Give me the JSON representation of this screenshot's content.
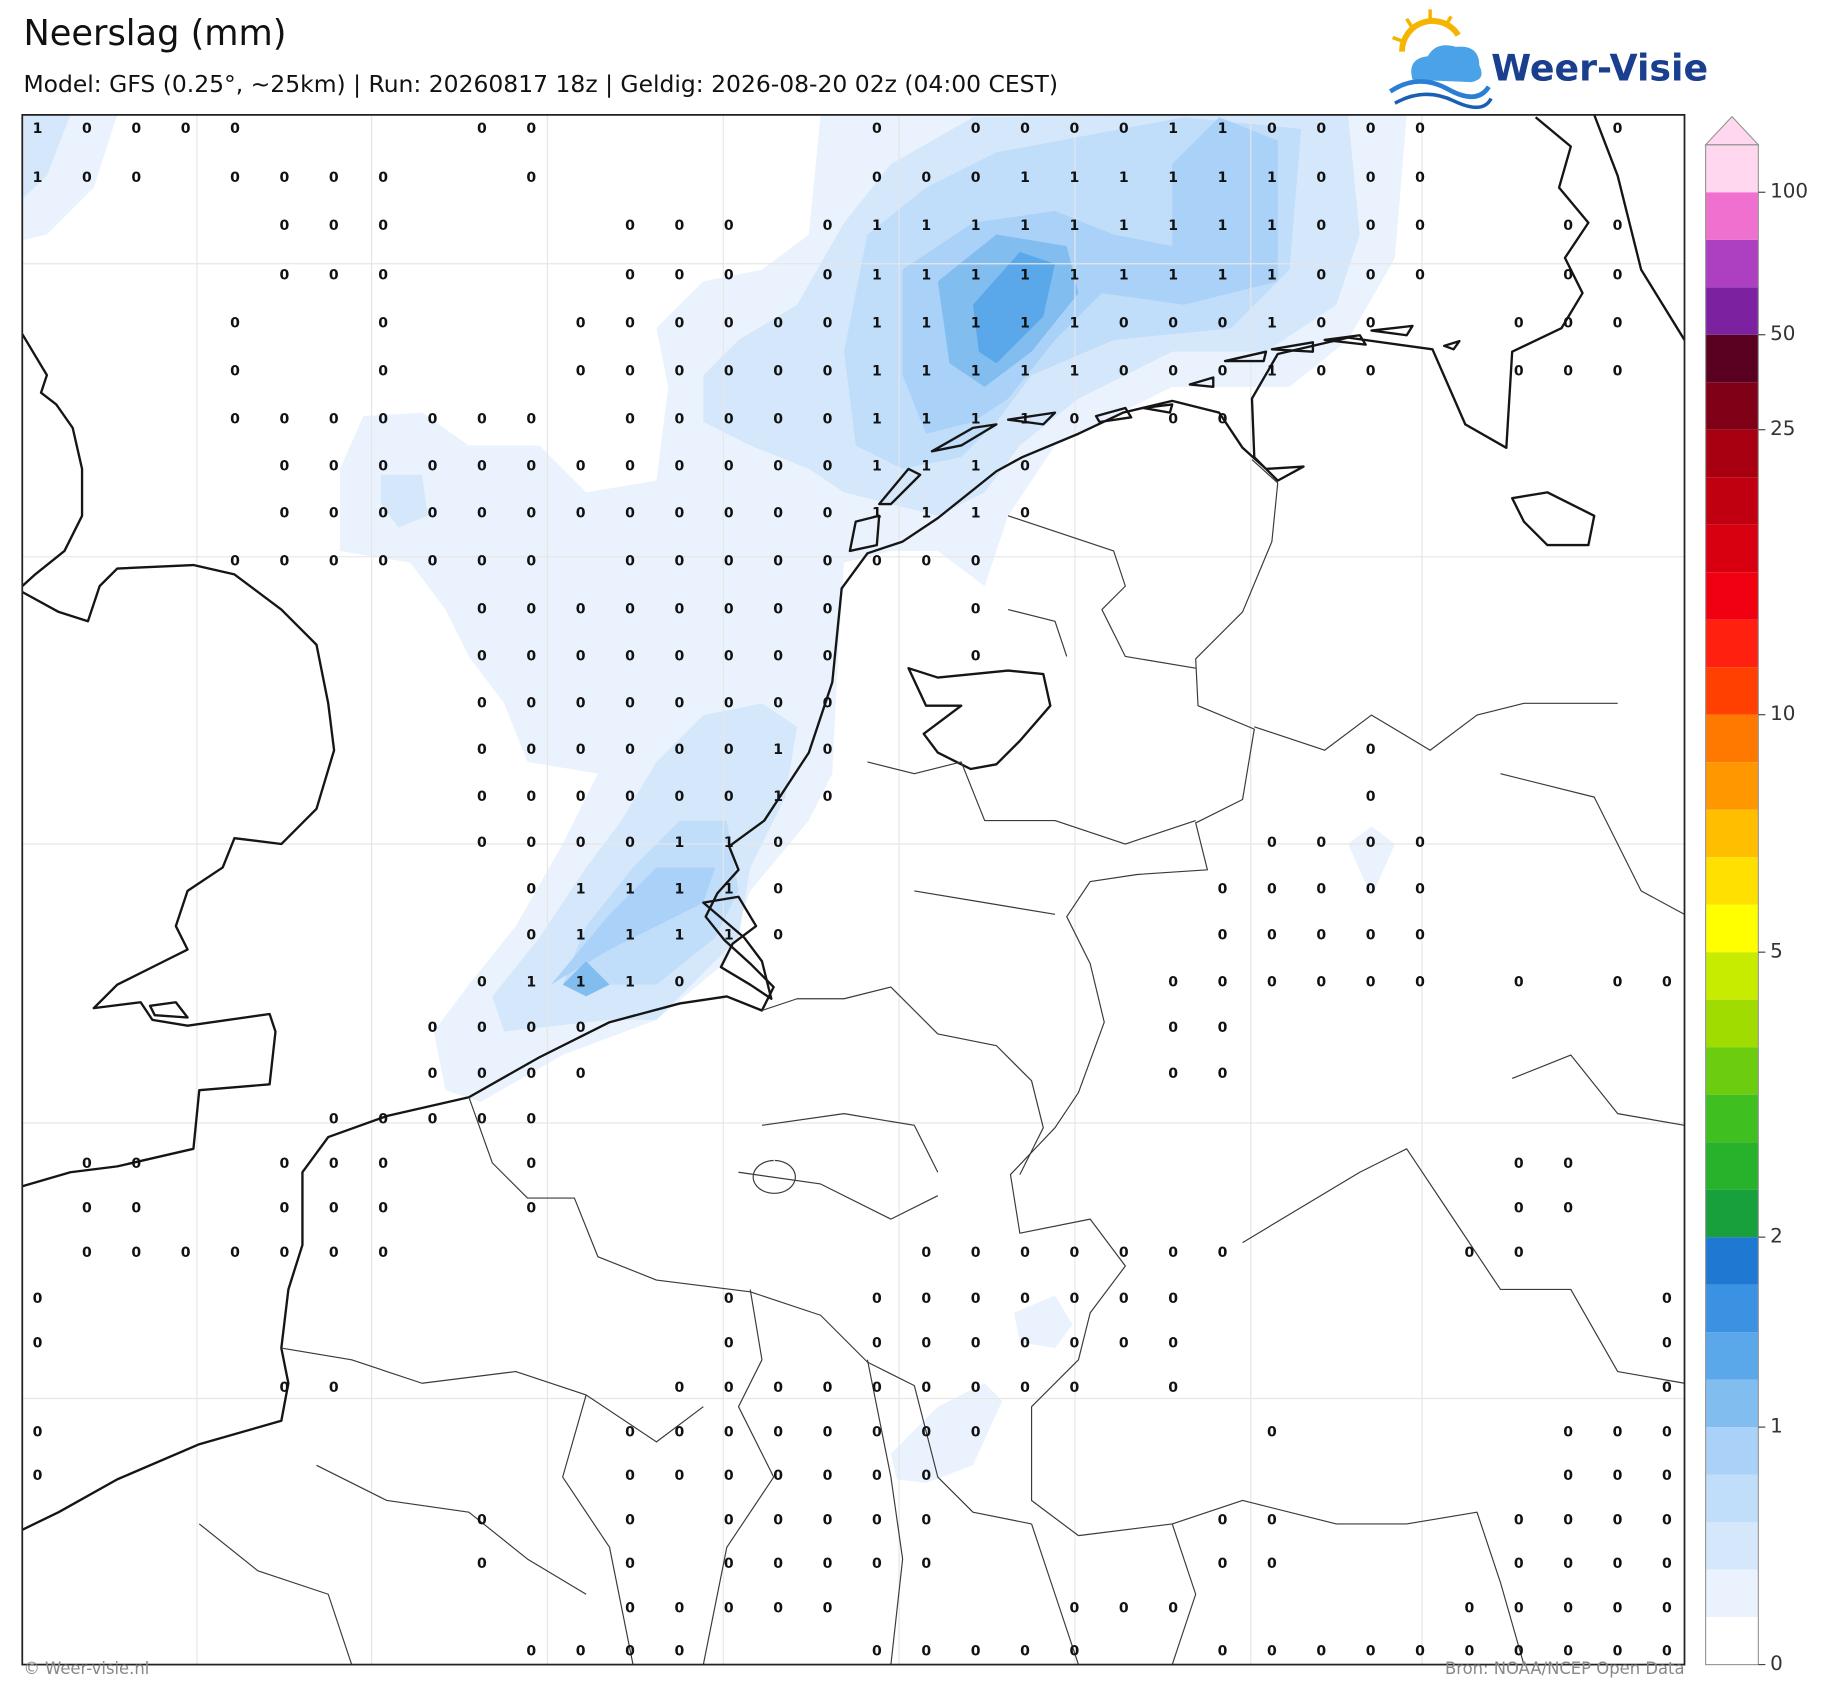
{
  "header": {
    "title": "Neerslag (mm)",
    "subtitle": "Model: GFS (0.25°, ~25km)  |  Run: 20260817 18z  |  Geldig: 2026-08-20 02z (04:00 CEST)"
  },
  "logo": "Weer-Visie",
  "grid": {
    "rows": [
      [
        1,
        0,
        0,
        0,
        0,
        null,
        null,
        null,
        null,
        0,
        0,
        null,
        null,
        null,
        null,
        null,
        null,
        0,
        null,
        0,
        0,
        0,
        0,
        1,
        1,
        0,
        0,
        0,
        0,
        null,
        null,
        null,
        0,
        null
      ],
      [
        1,
        0,
        0,
        null,
        0,
        0,
        0,
        0,
        null,
        null,
        0,
        null,
        null,
        null,
        null,
        null,
        null,
        0,
        0,
        0,
        1,
        1,
        1,
        1,
        1,
        1,
        0,
        0,
        0,
        null,
        null,
        null,
        null,
        null
      ],
      [
        null,
        null,
        null,
        null,
        null,
        0,
        0,
        0,
        null,
        null,
        null,
        null,
        0,
        0,
        0,
        null,
        0,
        1,
        1,
        1,
        1,
        1,
        1,
        1,
        1,
        1,
        0,
        0,
        0,
        null,
        null,
        0,
        0,
        null
      ],
      [
        null,
        null,
        null,
        null,
        null,
        0,
        0,
        0,
        null,
        null,
        null,
        null,
        0,
        0,
        0,
        null,
        0,
        1,
        1,
        1,
        1,
        1,
        1,
        1,
        1,
        1,
        0,
        0,
        0,
        null,
        null,
        0,
        0,
        null
      ],
      [
        null,
        null,
        null,
        null,
        0,
        null,
        null,
        0,
        null,
        null,
        null,
        0,
        0,
        0,
        0,
        0,
        0,
        1,
        1,
        1,
        1,
        1,
        0,
        0,
        0,
        1,
        0,
        0,
        null,
        null,
        0,
        0,
        0,
        null
      ],
      [
        null,
        null,
        null,
        null,
        0,
        null,
        null,
        0,
        null,
        null,
        null,
        0,
        0,
        0,
        0,
        0,
        0,
        1,
        1,
        1,
        1,
        1,
        0,
        0,
        0,
        1,
        0,
        0,
        null,
        null,
        0,
        0,
        0,
        null
      ],
      [
        null,
        null,
        null,
        null,
        0,
        0,
        0,
        0,
        0,
        0,
        0,
        null,
        0,
        0,
        0,
        0,
        0,
        1,
        1,
        1,
        1,
        0,
        null,
        0,
        0,
        null,
        null,
        null,
        null,
        null,
        null,
        null,
        null,
        null
      ],
      [
        null,
        null,
        null,
        null,
        null,
        0,
        0,
        0,
        0,
        0,
        0,
        0,
        0,
        0,
        0,
        0,
        0,
        1,
        1,
        1,
        0,
        null,
        null,
        null,
        null,
        null,
        null,
        null,
        null,
        null,
        null,
        null,
        null,
        null
      ],
      [
        null,
        null,
        null,
        null,
        null,
        0,
        0,
        0,
        0,
        0,
        0,
        0,
        0,
        0,
        0,
        0,
        0,
        1,
        1,
        1,
        0,
        null,
        null,
        null,
        null,
        null,
        null,
        null,
        null,
        null,
        null,
        null,
        null,
        null
      ],
      [
        null,
        null,
        null,
        null,
        0,
        0,
        0,
        0,
        0,
        0,
        0,
        null,
        0,
        0,
        0,
        0,
        0,
        0,
        0,
        0,
        null,
        null,
        null,
        null,
        null,
        null,
        null,
        null,
        null,
        null,
        null,
        null,
        null,
        null
      ],
      [
        null,
        null,
        null,
        null,
        null,
        null,
        null,
        null,
        null,
        0,
        0,
        0,
        0,
        0,
        0,
        0,
        0,
        null,
        null,
        0,
        null,
        null,
        null,
        null,
        null,
        null,
        null,
        null,
        null,
        null,
        null,
        null,
        null,
        null
      ],
      [
        null,
        null,
        null,
        null,
        null,
        null,
        null,
        null,
        null,
        0,
        0,
        0,
        0,
        0,
        0,
        0,
        0,
        null,
        null,
        0,
        null,
        null,
        null,
        null,
        null,
        null,
        null,
        null,
        null,
        null,
        null,
        null,
        null,
        null
      ],
      [
        null,
        null,
        null,
        null,
        null,
        null,
        null,
        null,
        null,
        0,
        0,
        0,
        0,
        0,
        0,
        0,
        0,
        null,
        null,
        null,
        null,
        null,
        null,
        null,
        null,
        null,
        null,
        null,
        null,
        null,
        null,
        null,
        null,
        null
      ],
      [
        null,
        null,
        null,
        null,
        null,
        null,
        null,
        null,
        null,
        0,
        0,
        0,
        0,
        0,
        0,
        1,
        0,
        null,
        null,
        null,
        null,
        null,
        null,
        null,
        null,
        null,
        null,
        0,
        null,
        null,
        null,
        null,
        null,
        null
      ],
      [
        null,
        null,
        null,
        null,
        null,
        null,
        null,
        null,
        null,
        0,
        0,
        0,
        0,
        0,
        0,
        1,
        0,
        null,
        null,
        null,
        null,
        null,
        null,
        null,
        null,
        null,
        null,
        0,
        null,
        null,
        null,
        null,
        null,
        null
      ],
      [
        null,
        null,
        null,
        null,
        null,
        null,
        null,
        null,
        null,
        0,
        0,
        0,
        0,
        1,
        1,
        0,
        null,
        null,
        null,
        null,
        null,
        null,
        null,
        null,
        null,
        0,
        0,
        0,
        0,
        null,
        null,
        null,
        null,
        null
      ],
      [
        null,
        null,
        null,
        null,
        null,
        null,
        null,
        null,
        null,
        null,
        0,
        1,
        1,
        1,
        1,
        0,
        null,
        null,
        null,
        null,
        null,
        null,
        null,
        null,
        0,
        0,
        0,
        0,
        0,
        null,
        null,
        null,
        null,
        null
      ],
      [
        null,
        null,
        null,
        null,
        null,
        null,
        null,
        null,
        null,
        null,
        0,
        1,
        1,
        1,
        1,
        0,
        null,
        null,
        null,
        null,
        null,
        null,
        null,
        null,
        0,
        0,
        0,
        0,
        0,
        null,
        null,
        null,
        null,
        null
      ],
      [
        null,
        null,
        null,
        null,
        null,
        null,
        null,
        null,
        null,
        0,
        1,
        1,
        1,
        0,
        null,
        null,
        null,
        null,
        null,
        null,
        null,
        null,
        null,
        0,
        0,
        0,
        0,
        0,
        0,
        null,
        0,
        null,
        0,
        0
      ],
      [
        null,
        null,
        null,
        null,
        null,
        null,
        null,
        null,
        0,
        0,
        0,
        0,
        null,
        null,
        null,
        null,
        null,
        null,
        null,
        null,
        null,
        null,
        null,
        0,
        0,
        null,
        null,
        null,
        null,
        null,
        null,
        null,
        null,
        null
      ],
      [
        null,
        null,
        null,
        null,
        null,
        null,
        null,
        null,
        0,
        0,
        0,
        0,
        null,
        null,
        null,
        null,
        null,
        null,
        null,
        null,
        null,
        null,
        null,
        0,
        0,
        null,
        null,
        null,
        null,
        null,
        null,
        null,
        null,
        null
      ],
      [
        null,
        null,
        null,
        null,
        null,
        null,
        0,
        0,
        0,
        0,
        0,
        null,
        null,
        null,
        null,
        null,
        null,
        null,
        null,
        null,
        null,
        null,
        null,
        null,
        null,
        null,
        null,
        null,
        null,
        null,
        null,
        null,
        null,
        null
      ],
      [
        null,
        0,
        0,
        null,
        null,
        0,
        0,
        0,
        null,
        null,
        0,
        null,
        null,
        null,
        null,
        null,
        null,
        null,
        null,
        null,
        null,
        null,
        null,
        null,
        null,
        null,
        null,
        null,
        null,
        null,
        0,
        0,
        null,
        null
      ],
      [
        null,
        0,
        0,
        null,
        null,
        0,
        0,
        0,
        null,
        null,
        0,
        null,
        null,
        null,
        null,
        null,
        null,
        null,
        null,
        null,
        null,
        null,
        null,
        null,
        null,
        null,
        null,
        null,
        null,
        null,
        0,
        0,
        null,
        null
      ],
      [
        null,
        0,
        0,
        0,
        0,
        0,
        0,
        0,
        null,
        null,
        null,
        null,
        null,
        null,
        null,
        null,
        null,
        null,
        0,
        0,
        0,
        0,
        0,
        0,
        0,
        null,
        null,
        null,
        null,
        0,
        0,
        null,
        null,
        null
      ],
      [
        0,
        null,
        null,
        null,
        null,
        null,
        null,
        null,
        null,
        null,
        null,
        null,
        null,
        null,
        0,
        null,
        null,
        0,
        0,
        0,
        0,
        0,
        0,
        0,
        null,
        null,
        null,
        null,
        null,
        null,
        null,
        null,
        null,
        0
      ],
      [
        0,
        null,
        null,
        null,
        null,
        null,
        null,
        null,
        null,
        null,
        null,
        null,
        null,
        null,
        0,
        null,
        null,
        0,
        0,
        0,
        0,
        0,
        0,
        0,
        null,
        null,
        null,
        null,
        null,
        null,
        null,
        null,
        null,
        0
      ],
      [
        null,
        null,
        null,
        null,
        null,
        0,
        0,
        null,
        null,
        null,
        null,
        null,
        null,
        0,
        0,
        0,
        0,
        0,
        0,
        0,
        0,
        0,
        null,
        0,
        null,
        null,
        null,
        null,
        null,
        null,
        null,
        null,
        null,
        0
      ],
      [
        0,
        null,
        null,
        null,
        null,
        null,
        null,
        null,
        null,
        null,
        null,
        null,
        0,
        0,
        0,
        0,
        0,
        0,
        0,
        0,
        null,
        null,
        null,
        null,
        null,
        0,
        null,
        null,
        null,
        null,
        null,
        0,
        0,
        0
      ],
      [
        0,
        null,
        null,
        null,
        null,
        null,
        null,
        null,
        null,
        null,
        null,
        null,
        0,
        0,
        0,
        0,
        0,
        0,
        0,
        null,
        null,
        null,
        null,
        null,
        null,
        null,
        null,
        null,
        null,
        null,
        null,
        0,
        0,
        0
      ],
      [
        null,
        null,
        null,
        null,
        null,
        null,
        null,
        null,
        null,
        0,
        null,
        null,
        0,
        null,
        0,
        0,
        0,
        0,
        0,
        null,
        null,
        null,
        null,
        null,
        0,
        0,
        null,
        null,
        null,
        null,
        0,
        0,
        0,
        0
      ],
      [
        null,
        null,
        null,
        null,
        null,
        null,
        null,
        null,
        null,
        0,
        null,
        null,
        0,
        null,
        0,
        0,
        0,
        0,
        0,
        null,
        null,
        null,
        null,
        null,
        0,
        0,
        null,
        null,
        null,
        null,
        0,
        0,
        0,
        0
      ],
      [
        null,
        null,
        null,
        null,
        null,
        null,
        null,
        null,
        null,
        null,
        null,
        null,
        0,
        0,
        0,
        0,
        0,
        null,
        null,
        null,
        null,
        0,
        0,
        0,
        null,
        null,
        null,
        null,
        null,
        0,
        0,
        0,
        0,
        0
      ],
      [
        null,
        null,
        null,
        null,
        null,
        null,
        null,
        null,
        null,
        null,
        0,
        0,
        0,
        0,
        null,
        null,
        null,
        0,
        0,
        0,
        0,
        0,
        null,
        null,
        0,
        0,
        0,
        0,
        0,
        0,
        0,
        0,
        0,
        0
      ]
    ]
  },
  "colorbar": {
    "levels": [
      0,
      0.1,
      0.2,
      0.3,
      0.5,
      1,
      1.25,
      1.5,
      1.75,
      2,
      2.5,
      3,
      3.5,
      4,
      4.5,
      5,
      6,
      7,
      8,
      9,
      10,
      12,
      14,
      16,
      18,
      20,
      25,
      35,
      50,
      65,
      80,
      100
    ],
    "colors": [
      "#ffffff",
      "#eaf3fd",
      "#d5e8fb",
      "#c0ddf9",
      "#aad1f7",
      "#82bdf0",
      "#5aa8ea",
      "#3c92e2",
      "#1f78d2",
      "#17a03c",
      "#27b22b",
      "#40c020",
      "#6ccd10",
      "#a0dc00",
      "#c8ec00",
      "#ffff00",
      "#ffe000",
      "#ffbf00",
      "#ff9800",
      "#ff7800",
      "#ff4000",
      "#ff2010",
      "#f00010",
      "#d80010",
      "#c00010",
      "#a80010",
      "#800018",
      "#5a0020",
      "#7c22a0",
      "#ac40c0",
      "#f070d0",
      "#ffd8f0"
    ],
    "ticks": [
      0,
      1,
      2,
      5,
      10,
      25,
      50,
      100
    ]
  },
  "footer": {
    "left": "© Weer-visie.nl",
    "right": "Bron: NOAA/NCEP Open Data"
  }
}
